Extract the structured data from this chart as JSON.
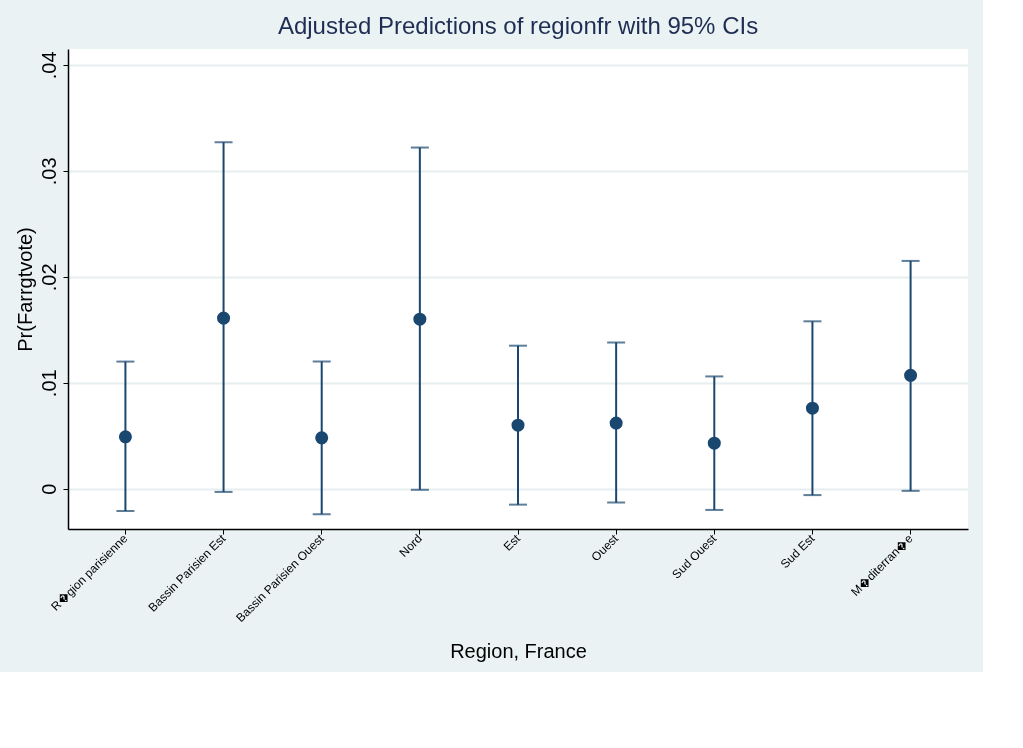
{
  "chart_data": {
    "type": "scatter",
    "title": "Adjusted Predictions of regionfr with 95% CIs",
    "xlabel": "Region, France",
    "ylabel": "Pr(Farrgtvote)",
    "categories": [
      "R�gion parisienne",
      "Bassin Parisien Est",
      "Bassin Parisien Ouest",
      "Nord",
      "Est",
      "Ouest",
      "Sud Ouest",
      "Sud Est",
      "M�diterran�e"
    ],
    "series": [
      {
        "color": "#1a476f",
        "values": [
          0.0049,
          0.0161,
          0.0048,
          0.016,
          0.006,
          0.0062,
          0.0043,
          0.0076,
          0.0107
        ],
        "errors": [
          [
            -0.0021,
            0.012
          ],
          [
            -0.0003,
            0.0327
          ],
          [
            -0.0024,
            0.012
          ],
          [
            -0.0001,
            0.0322
          ],
          [
            -0.0015,
            0.0135
          ],
          [
            -0.0013,
            0.0138
          ],
          [
            -0.002,
            0.0106
          ],
          [
            -0.0006,
            0.0158
          ],
          [
            -0.0002,
            0.0215
          ]
        ]
      }
    ],
    "ylim": [
      -0.0038,
      0.0415
    ],
    "yticks": [
      0,
      {
        "value": 0.01,
        "label": ".01"
      },
      {
        "value": 0.02,
        "label": ".02"
      },
      {
        "value": 0.03,
        "label": ".03"
      },
      {
        "value": 0.04,
        "label": ".04"
      }
    ],
    "grid": "y",
    "marker": "circle"
  }
}
